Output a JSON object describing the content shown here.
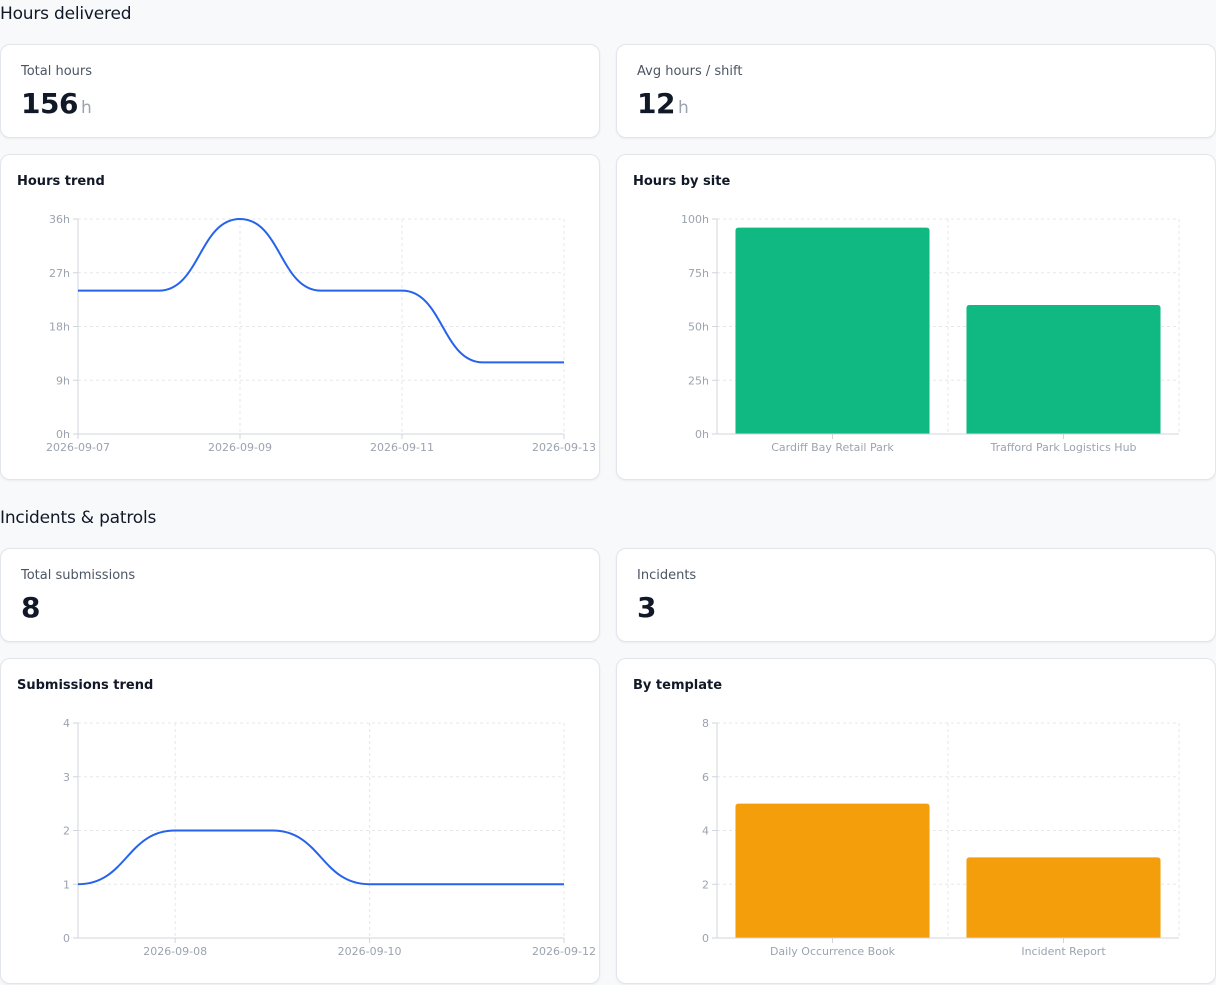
{
  "hours_section": {
    "title": "Hours delivered",
    "total": {
      "label": "Total hours",
      "value": "156",
      "unit": "h"
    },
    "avg": {
      "label": "Avg hours / shift",
      "value": "12",
      "unit": "h"
    },
    "trend": {
      "title": "Hours trend"
    },
    "by_site": {
      "title": "Hours by site"
    }
  },
  "incidents_section": {
    "title": "Incidents & patrols",
    "total": {
      "label": "Total submissions",
      "value": "8"
    },
    "incidents": {
      "label": "Incidents",
      "value": "3"
    },
    "trend": {
      "title": "Submissions trend"
    },
    "by_template": {
      "title": "By template"
    }
  },
  "colors": {
    "line": "#2563eb",
    "site_bar": "#10b981",
    "template_bar": "#f59e0b"
  },
  "chart_data": [
    {
      "id": "hours_trend",
      "type": "line",
      "title": "Hours trend",
      "x": [
        "2026-09-07",
        "2026-09-08",
        "2026-09-09",
        "2026-09-10",
        "2026-09-11",
        "2026-09-12",
        "2026-09-13"
      ],
      "series": [
        {
          "values": [
            24,
            24,
            36,
            24,
            24,
            12,
            12
          ]
        }
      ],
      "x_tick_labels": [
        "2026-09-07",
        "2026-09-09",
        "2026-09-11",
        "2026-09-13"
      ],
      "y_ticks": [
        "0h",
        "9h",
        "18h",
        "27h",
        "36h"
      ],
      "ylim": [
        0,
        36
      ],
      "grid": true
    },
    {
      "id": "hours_by_site",
      "type": "bar",
      "title": "Hours by site",
      "categories": [
        "Cardiff Bay Retail Park",
        "Trafford Park Logistics Hub"
      ],
      "values": [
        96,
        60
      ],
      "y_ticks": [
        "0h",
        "25h",
        "50h",
        "75h",
        "100h"
      ],
      "ylim": [
        0,
        100
      ],
      "grid": true
    },
    {
      "id": "submissions_trend",
      "type": "line",
      "title": "Submissions trend",
      "x": [
        "2026-09-07",
        "2026-09-08",
        "2026-09-09",
        "2026-09-10",
        "2026-09-11",
        "2026-09-12"
      ],
      "series": [
        {
          "values": [
            1,
            2,
            2,
            1,
            1,
            1
          ]
        }
      ],
      "x_tick_labels": [
        "2026-09-08",
        "2026-09-10",
        "2026-09-12"
      ],
      "y_ticks": [
        "0",
        "1",
        "2",
        "3",
        "4"
      ],
      "ylim": [
        0,
        4
      ],
      "grid": true
    },
    {
      "id": "by_template",
      "type": "bar",
      "title": "By template",
      "categories": [
        "Daily Occurrence Book",
        "Incident Report"
      ],
      "values": [
        5,
        3
      ],
      "y_ticks": [
        "0",
        "2",
        "4",
        "6",
        "8"
      ],
      "ylim": [
        0,
        8
      ],
      "grid": true
    }
  ]
}
